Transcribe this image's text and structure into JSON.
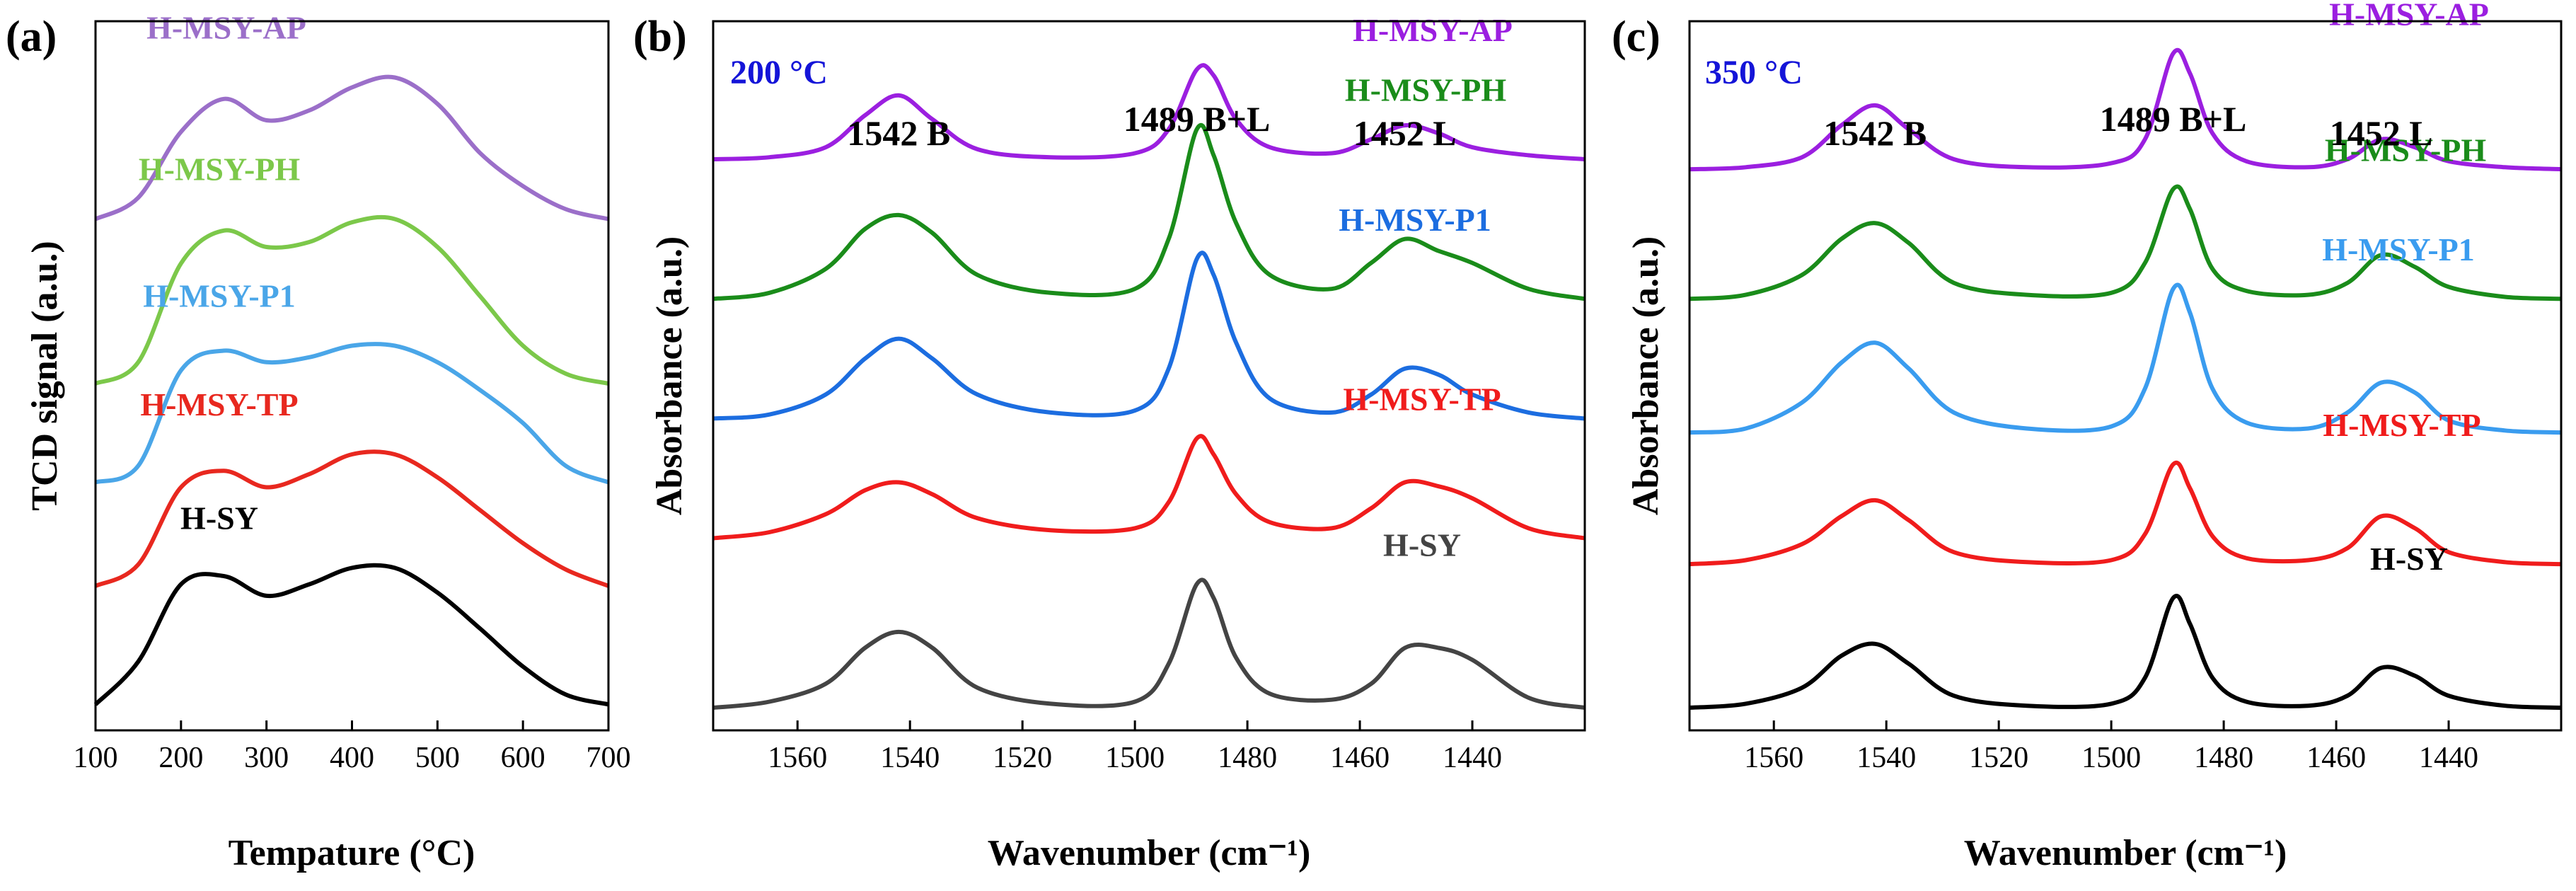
{
  "chart_data": [
    {
      "type": "line",
      "panel_label": "(a)",
      "xlabel": "Tempature (°C)",
      "ylabel": "TCD signal (a.u.)",
      "xlim": [
        100,
        700
      ],
      "x_ticks": [
        100,
        200,
        300,
        400,
        500,
        600,
        700
      ],
      "offsets": [
        0,
        0.72,
        1.35,
        1.95,
        2.95
      ],
      "series": [
        {
          "name": "H-MSY-AP",
          "color": "#9b6fc9",
          "x": [
            100,
            150,
            200,
            250,
            300,
            350,
            400,
            450,
            500,
            550,
            600,
            650,
            700
          ],
          "y": [
            0.02,
            0.15,
            0.55,
            0.75,
            0.62,
            0.68,
            0.82,
            0.88,
            0.72,
            0.42,
            0.22,
            0.08,
            0.02
          ]
        },
        {
          "name": "H-MSY-PH",
          "color": "#7cc84a",
          "x": [
            100,
            150,
            200,
            250,
            300,
            350,
            400,
            450,
            500,
            550,
            600,
            650,
            700
          ],
          "y": [
            0.02,
            0.15,
            0.75,
            0.95,
            0.85,
            0.88,
            1.0,
            1.02,
            0.85,
            0.55,
            0.25,
            0.08,
            0.02
          ]
        },
        {
          "name": "H-MSY-P1",
          "color": "#4aa6e8",
          "x": [
            100,
            150,
            200,
            250,
            300,
            350,
            400,
            450,
            500,
            550,
            600,
            650,
            700
          ],
          "y": [
            0.02,
            0.12,
            0.7,
            0.82,
            0.75,
            0.78,
            0.85,
            0.85,
            0.75,
            0.58,
            0.38,
            0.12,
            0.02
          ]
        },
        {
          "name": "H-MSY-TP",
          "color": "#e8281f",
          "x": [
            100,
            150,
            200,
            250,
            300,
            350,
            400,
            450,
            500,
            550,
            600,
            650,
            700
          ],
          "y": [
            0.02,
            0.15,
            0.62,
            0.72,
            0.62,
            0.7,
            0.82,
            0.82,
            0.68,
            0.48,
            0.28,
            0.12,
            0.02
          ]
        },
        {
          "name": "H-SY",
          "color": "#000000",
          "x": [
            100,
            150,
            200,
            250,
            300,
            350,
            400,
            450,
            500,
            550,
            600,
            650,
            700
          ],
          "y": [
            0.02,
            0.28,
            0.75,
            0.8,
            0.68,
            0.75,
            0.85,
            0.85,
            0.7,
            0.48,
            0.25,
            0.08,
            0.02
          ]
        }
      ]
    },
    {
      "type": "line",
      "panel_label": "(b)",
      "temperature_label": "200 °C",
      "xlabel": "Wavenumber (cm⁻¹)",
      "ylabel": "Absorbance (a.u.)",
      "xlim": [
        1575,
        1420
      ],
      "x_ticks": [
        1560,
        1540,
        1520,
        1500,
        1480,
        1460,
        1440
      ],
      "peak_annotations": [
        {
          "text": "1542 B",
          "x": 1542
        },
        {
          "text": "1489 B+L",
          "x": 1489
        },
        {
          "text": "1452 L",
          "x": 1452
        }
      ],
      "offsets": [
        0,
        0.85,
        1.45,
        2.05,
        2.75
      ],
      "series": [
        {
          "name": "H-MSY-AP",
          "color": "#9b1fe0",
          "x": [
            1575,
            1565,
            1555,
            1548,
            1542,
            1536,
            1528,
            1515,
            1500,
            1494,
            1489,
            1486,
            1482,
            1476,
            1465,
            1458,
            1452,
            1446,
            1440,
            1430,
            1420
          ],
          "y": [
            0.0,
            0.01,
            0.06,
            0.22,
            0.32,
            0.2,
            0.05,
            0.01,
            0.03,
            0.15,
            0.45,
            0.42,
            0.2,
            0.06,
            0.03,
            0.1,
            0.17,
            0.13,
            0.06,
            0.02,
            0.0
          ]
        },
        {
          "name": "H-MSY-PH",
          "color": "#1a8c1a",
          "x": [
            1575,
            1565,
            1555,
            1548,
            1542,
            1536,
            1528,
            1515,
            1500,
            1494,
            1489,
            1486,
            1482,
            1476,
            1465,
            1458,
            1452,
            1446,
            1440,
            1430,
            1420
          ],
          "y": [
            0.0,
            0.03,
            0.15,
            0.35,
            0.42,
            0.33,
            0.12,
            0.03,
            0.05,
            0.3,
            0.85,
            0.72,
            0.38,
            0.12,
            0.05,
            0.18,
            0.3,
            0.24,
            0.18,
            0.05,
            0.0
          ]
        },
        {
          "name": "H-MSY-P1",
          "color": "#1c6de0",
          "x": [
            1575,
            1565,
            1555,
            1548,
            1542,
            1536,
            1528,
            1515,
            1500,
            1494,
            1489,
            1486,
            1482,
            1476,
            1465,
            1458,
            1452,
            1446,
            1440,
            1430,
            1420
          ],
          "y": [
            0.0,
            0.02,
            0.12,
            0.3,
            0.4,
            0.3,
            0.12,
            0.03,
            0.04,
            0.25,
            0.8,
            0.72,
            0.38,
            0.1,
            0.03,
            0.12,
            0.25,
            0.22,
            0.12,
            0.03,
            0.0
          ]
        },
        {
          "name": "H-MSY-TP",
          "color": "#f01c1c",
          "x": [
            1575,
            1565,
            1555,
            1548,
            1542,
            1536,
            1528,
            1515,
            1500,
            1494,
            1489,
            1486,
            1482,
            1476,
            1465,
            1458,
            1452,
            1446,
            1440,
            1430,
            1420
          ],
          "y": [
            0.0,
            0.03,
            0.12,
            0.24,
            0.28,
            0.22,
            0.1,
            0.04,
            0.05,
            0.18,
            0.5,
            0.42,
            0.22,
            0.08,
            0.05,
            0.15,
            0.28,
            0.26,
            0.2,
            0.05,
            0.0
          ]
        },
        {
          "name": "H-SY",
          "color": "#444444",
          "x": [
            1575,
            1565,
            1555,
            1548,
            1542,
            1536,
            1528,
            1515,
            1500,
            1494,
            1489,
            1486,
            1482,
            1476,
            1465,
            1458,
            1452,
            1446,
            1440,
            1430,
            1420
          ],
          "y": [
            0.0,
            0.03,
            0.12,
            0.3,
            0.38,
            0.3,
            0.1,
            0.02,
            0.03,
            0.22,
            0.62,
            0.55,
            0.25,
            0.07,
            0.04,
            0.12,
            0.3,
            0.3,
            0.24,
            0.05,
            0.0
          ]
        }
      ]
    },
    {
      "type": "line",
      "panel_label": "(c)",
      "temperature_label": "350 °C",
      "xlabel": "Wavenumber (cm⁻¹)",
      "ylabel": "Absorbance (a.u.)",
      "xlim": [
        1575,
        1420
      ],
      "x_ticks": [
        1560,
        1540,
        1520,
        1500,
        1480,
        1460,
        1440
      ],
      "peak_annotations": [
        {
          "text": "1542 B",
          "x": 1542
        },
        {
          "text": "1489 B+L",
          "x": 1489
        },
        {
          "text": "1452 L",
          "x": 1452
        }
      ],
      "offsets": [
        0,
        0.72,
        1.38,
        2.05,
        2.7
      ],
      "series": [
        {
          "name": "H-MSY-AP",
          "color": "#9b1fe0",
          "x": [
            1575,
            1565,
            1555,
            1548,
            1542,
            1536,
            1528,
            1515,
            1500,
            1494,
            1489,
            1486,
            1482,
            1476,
            1465,
            1458,
            1452,
            1446,
            1440,
            1430,
            1420
          ],
          "y": [
            0.0,
            0.01,
            0.06,
            0.22,
            0.32,
            0.2,
            0.05,
            0.01,
            0.03,
            0.15,
            0.58,
            0.48,
            0.18,
            0.04,
            0.01,
            0.05,
            0.15,
            0.11,
            0.04,
            0.01,
            0.0
          ]
        },
        {
          "name": "H-MSY-PH",
          "color": "#1a8c1a",
          "x": [
            1575,
            1565,
            1555,
            1548,
            1542,
            1536,
            1528,
            1515,
            1500,
            1494,
            1489,
            1486,
            1482,
            1476,
            1465,
            1458,
            1452,
            1446,
            1440,
            1430,
            1420
          ],
          "y": [
            0.0,
            0.02,
            0.12,
            0.3,
            0.38,
            0.28,
            0.08,
            0.02,
            0.03,
            0.18,
            0.55,
            0.45,
            0.15,
            0.04,
            0.02,
            0.08,
            0.22,
            0.16,
            0.06,
            0.01,
            0.0
          ]
        },
        {
          "name": "H-MSY-P1",
          "color": "#3a9cef",
          "x": [
            1575,
            1565,
            1555,
            1548,
            1542,
            1536,
            1528,
            1515,
            1500,
            1494,
            1489,
            1486,
            1482,
            1476,
            1465,
            1458,
            1452,
            1446,
            1440,
            1430,
            1420
          ],
          "y": [
            0.0,
            0.02,
            0.15,
            0.35,
            0.45,
            0.32,
            0.1,
            0.02,
            0.03,
            0.22,
            0.72,
            0.6,
            0.22,
            0.05,
            0.02,
            0.1,
            0.25,
            0.2,
            0.06,
            0.01,
            0.0
          ]
        },
        {
          "name": "H-MSY-TP",
          "color": "#f01c1c",
          "x": [
            1575,
            1565,
            1555,
            1548,
            1542,
            1536,
            1528,
            1515,
            1500,
            1494,
            1489,
            1486,
            1482,
            1476,
            1465,
            1458,
            1452,
            1446,
            1440,
            1430,
            1420
          ],
          "y": [
            0.0,
            0.02,
            0.1,
            0.24,
            0.32,
            0.22,
            0.06,
            0.01,
            0.02,
            0.15,
            0.5,
            0.38,
            0.14,
            0.03,
            0.02,
            0.08,
            0.24,
            0.18,
            0.06,
            0.01,
            0.0
          ]
        },
        {
          "name": "H-SY",
          "color": "#000000",
          "x": [
            1575,
            1565,
            1555,
            1548,
            1542,
            1536,
            1528,
            1515,
            1500,
            1494,
            1489,
            1486,
            1482,
            1476,
            1465,
            1458,
            1452,
            1446,
            1440,
            1430,
            1420
          ],
          "y": [
            0.0,
            0.02,
            0.1,
            0.26,
            0.32,
            0.22,
            0.06,
            0.01,
            0.02,
            0.15,
            0.55,
            0.42,
            0.15,
            0.03,
            0.01,
            0.06,
            0.2,
            0.16,
            0.06,
            0.01,
            0.0
          ]
        }
      ]
    }
  ]
}
